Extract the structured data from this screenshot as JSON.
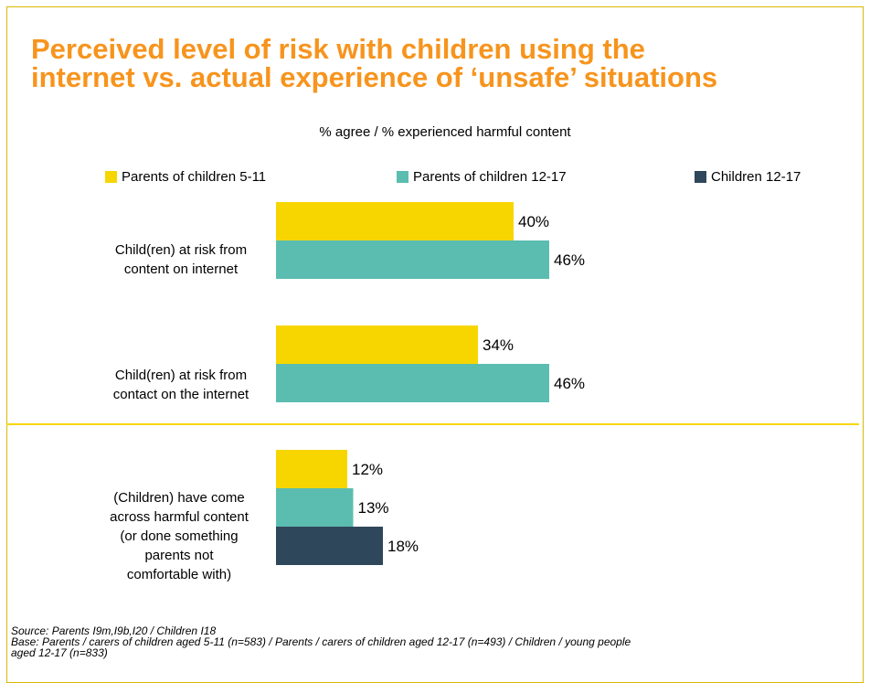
{
  "title_lines": [
    "Perceived level of risk with children using the",
    "internet vs. actual experience of ‘unsafe’ situations"
  ],
  "source_lines": [
    "Source: Parents I9m,I9b,I20 / Children I18",
    "Base: Parents / carers of children aged 5-11 (n=583) / Parents / carers of children aged 12-17 (n=493) / Children / young people",
    "aged 12-17 (n=833)"
  ],
  "chart_data": {
    "type": "bar",
    "orientation": "horizontal",
    "subtitle": "% agree  /  % experienced harmful content",
    "legend_placement": "top",
    "value_suffix": "%",
    "xlim": [
      0,
      100
    ],
    "grid": false,
    "series": [
      {
        "name": "Parents of children 5-11",
        "color": "#f7d600"
      },
      {
        "name": "Parents of children 12-17",
        "color": "#5bbdb0"
      },
      {
        "name": "Children 12-17",
        "color": "#2f475b"
      }
    ],
    "categories": [
      {
        "label_lines": [
          "Child(ren) at risk from",
          "content on internet"
        ],
        "values": [
          40,
          46
        ]
      },
      {
        "label_lines": [
          "Child(ren) at risk from",
          "contact on the internet"
        ],
        "values": [
          34,
          46
        ]
      },
      {
        "label_lines": [
          "(Children) have come",
          "across harmful content",
          "(or done something",
          "parents not",
          "comfortable with)"
        ],
        "values": [
          12,
          13,
          18
        ]
      }
    ]
  }
}
